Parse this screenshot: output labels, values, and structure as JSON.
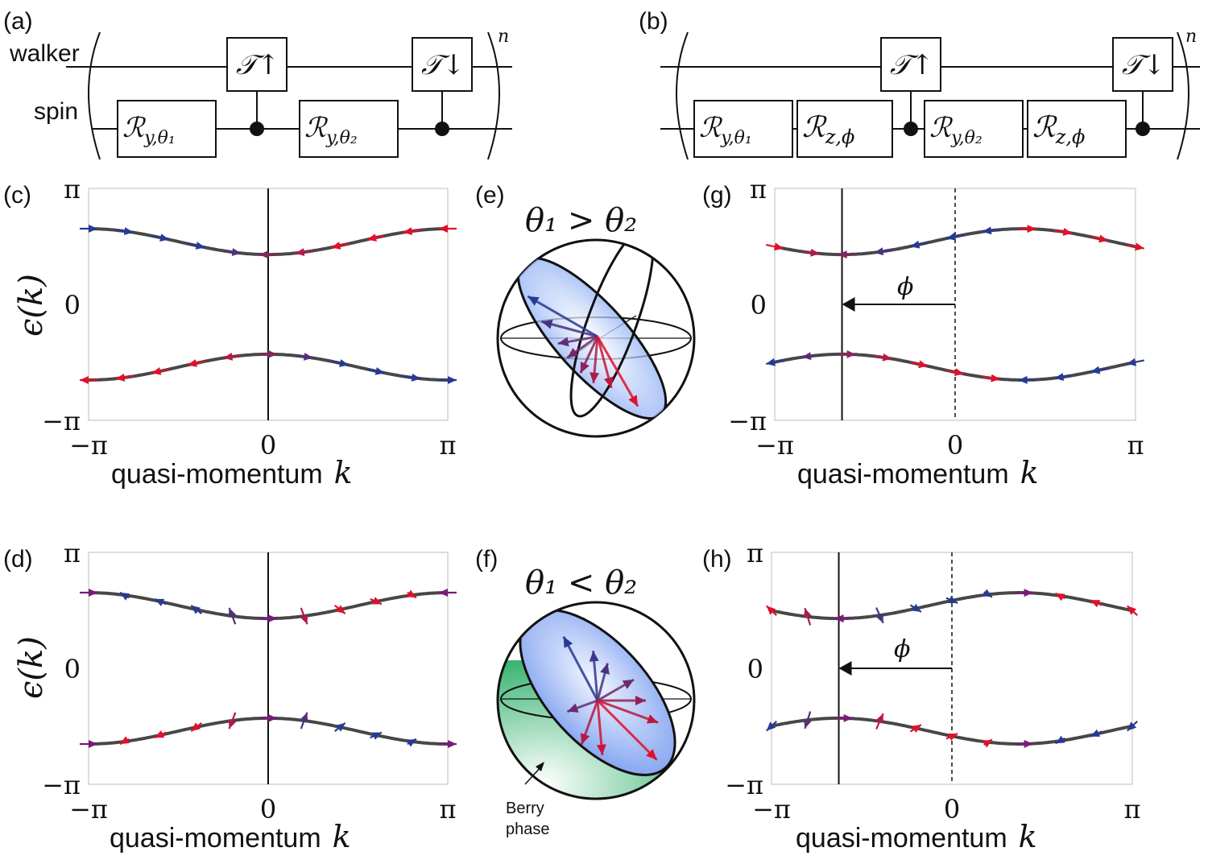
{
  "colors": {
    "up": "#e0112a",
    "down": "#273a93",
    "mix": "#7a1a7a",
    "curve": "#474747",
    "sphere_fill": "#2fb06a"
  },
  "panels": {
    "a": "(a)",
    "b": "(b)",
    "c": "(c)",
    "d": "(d)",
    "e": "(e)",
    "f": "(f)",
    "g": "(g)",
    "h": "(h)"
  },
  "circuit": {
    "walker_label": "walker",
    "spin_label": "spin",
    "exponent": "n",
    "T_up": "𝒯↑",
    "T_down": "𝒯↓",
    "Ry1_base": "ℛ",
    "Ry1_sub": "y,θ₁",
    "Ry2_base": "ℛ",
    "Ry2_sub": "y,θ₂",
    "Rz_base": "ℛ",
    "Rz_sub": "z,ϕ"
  },
  "sphere": {
    "e_title": "θ₁ > θ₂",
    "f_title": "θ₁ < θ₂",
    "berry_line1": "Berry",
    "berry_line2": "phase"
  },
  "axes": {
    "ylabel": "ϵ(k)",
    "xlabel": "quasi-momentum",
    "xlabel_var": "k",
    "xticks": [
      "−π",
      "0",
      "π"
    ],
    "yticks": [
      "π",
      "0",
      "−π"
    ],
    "phi_label": "ϕ"
  },
  "chart_data": [
    {
      "panel": "c",
      "type": "line",
      "x_range": [
        -3.1416,
        3.1416
      ],
      "y_range": [
        -3.1416,
        3.1416
      ],
      "series": [
        {
          "band": "upper",
          "x": [
            -3.14,
            -1.57,
            0,
            1.57,
            3.14
          ],
          "y": [
            2.05,
            1.6,
            1.35,
            1.6,
            2.05
          ]
        },
        {
          "band": "lower",
          "x": [
            -3.14,
            -1.57,
            0,
            1.57,
            3.14
          ],
          "y": [
            -2.05,
            -1.6,
            -1.35,
            -1.6,
            -2.05
          ]
        }
      ],
      "k_shift": 0
    },
    {
      "panel": "d",
      "type": "line",
      "x_range": [
        -3.1416,
        3.1416
      ],
      "y_range": [
        -3.1416,
        3.1416
      ],
      "series": [
        {
          "band": "upper",
          "x": [
            -3.14,
            -1.57,
            0,
            1.57,
            3.14
          ],
          "y": [
            2.05,
            1.6,
            1.35,
            1.6,
            2.05
          ]
        },
        {
          "band": "lower",
          "x": [
            -3.14,
            -1.57,
            0,
            1.57,
            3.14
          ],
          "y": [
            -2.05,
            -1.6,
            -1.35,
            -1.6,
            -2.05
          ]
        }
      ],
      "k_shift": 0
    },
    {
      "panel": "g",
      "type": "line",
      "x_range": [
        -3.1416,
        3.1416
      ],
      "y_range": [
        -3.1416,
        3.1416
      ],
      "series": [
        {
          "band": "upper",
          "x": [
            -3.14,
            -1.97,
            1.17,
            3.14
          ],
          "y": [
            1.75,
            1.35,
            2.05,
            1.6
          ]
        },
        {
          "band": "lower",
          "x": [
            -3.14,
            -1.97,
            1.17,
            3.14
          ],
          "y": [
            -1.75,
            -1.35,
            -2.05,
            -1.6
          ]
        }
      ],
      "k_shift": -1.97
    },
    {
      "panel": "h",
      "type": "line",
      "x_range": [
        -3.1416,
        3.1416
      ],
      "y_range": [
        -3.1416,
        3.1416
      ],
      "series": [
        {
          "band": "upper",
          "x": [
            -3.14,
            -1.97,
            1.17,
            3.14
          ],
          "y": [
            1.75,
            1.35,
            2.05,
            1.6
          ]
        },
        {
          "band": "lower",
          "x": [
            -3.14,
            -1.97,
            1.17,
            3.14
          ],
          "y": [
            -1.75,
            -1.35,
            -2.05,
            -1.6
          ]
        }
      ],
      "k_shift": -1.97
    }
  ]
}
